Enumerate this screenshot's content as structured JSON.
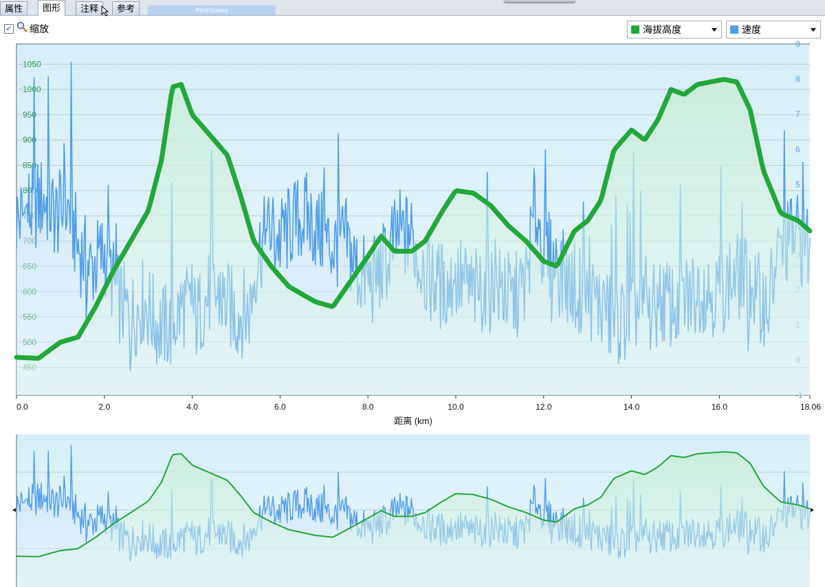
{
  "tabs": [
    {
      "label": "属性",
      "active": false
    },
    {
      "label": "图形",
      "active": true
    },
    {
      "label": "注释",
      "active": false
    },
    {
      "label": "参考",
      "active": false
    }
  ],
  "capture_label": "PrintScreen",
  "toolbar": {
    "zoom_checked": true,
    "zoom_label": "缩放",
    "series1_select": "海拔高度",
    "series2_select": "速度"
  },
  "colors": {
    "elevation": "#22a83a",
    "speed": "#4f9ee8",
    "axis_left": "#2f9a4a",
    "axis_right": "#5a9fd9"
  },
  "chart_data": {
    "type": "line",
    "xlabel": "距离 (km)",
    "xlim": [
      0,
      18.06
    ],
    "x_ticks": [
      "0.0",
      "2.0",
      "4.0",
      "6.0",
      "8.0",
      "10.0",
      "12.0",
      "14.0",
      "16.0",
      "18.06"
    ],
    "y_left_ticks": [
      450,
      500,
      550,
      600,
      650,
      700,
      750,
      800,
      850,
      900,
      950,
      1000,
      1050
    ],
    "y_left_range": [
      395,
      1090
    ],
    "y_right_ticks": [
      -1,
      0,
      1,
      2,
      3,
      4,
      5,
      6,
      7,
      8,
      9
    ],
    "y_right_range": [
      -1,
      9
    ],
    "series": [
      {
        "name": "海拔高度",
        "axis": "left",
        "x": [
          0,
          0.5,
          1.0,
          1.4,
          1.8,
          2.2,
          2.6,
          3.0,
          3.3,
          3.55,
          3.75,
          4.0,
          4.4,
          4.8,
          5.1,
          5.4,
          5.8,
          6.2,
          6.8,
          7.2,
          7.6,
          8.0,
          8.3,
          8.6,
          9.0,
          9.3,
          9.7,
          10.0,
          10.4,
          10.8,
          11.2,
          11.6,
          12.0,
          12.3,
          12.7,
          13.0,
          13.3,
          13.6,
          14.0,
          14.3,
          14.6,
          14.9,
          15.2,
          15.5,
          15.8,
          16.1,
          16.4,
          16.7,
          17.0,
          17.4,
          17.8,
          18.06
        ],
        "y": [
          470,
          468,
          500,
          510,
          570,
          640,
          700,
          760,
          860,
          1005,
          1010,
          950,
          910,
          870,
          790,
          700,
          650,
          610,
          580,
          570,
          620,
          670,
          710,
          680,
          680,
          700,
          760,
          800,
          795,
          770,
          730,
          700,
          660,
          650,
          720,
          740,
          780,
          880,
          920,
          900,
          940,
          1000,
          990,
          1010,
          1015,
          1020,
          1015,
          960,
          840,
          755,
          740,
          720
        ]
      },
      {
        "name": "速度",
        "axis": "right",
        "x": [
          0,
          0.3,
          0.6,
          0.9,
          1.2,
          1.4,
          1.7,
          2.0,
          2.3,
          2.6,
          2.9,
          3.2,
          3.5,
          3.8,
          4.1,
          4.4,
          4.7,
          5.0,
          5.3,
          5.5,
          5.8,
          6.0,
          6.3,
          6.6,
          6.9,
          7.2,
          7.5,
          7.8,
          8.1,
          8.4,
          8.7,
          9.0,
          9.2,
          9.5,
          9.8,
          10.1,
          10.4,
          10.7,
          11.0,
          11.3,
          11.6,
          11.8,
          12.0,
          12.3,
          12.6,
          12.9,
          13.2,
          13.5,
          13.8,
          14.1,
          14.4,
          14.7,
          15.0,
          15.3,
          15.6,
          15.9,
          16.2,
          16.5,
          16.8,
          17.1,
          17.4,
          17.7,
          18.06
        ],
        "y": [
          4.0,
          4.2,
          4.6,
          4.1,
          4.3,
          3.2,
          2.6,
          3.1,
          1.8,
          1.2,
          1.7,
          1.0,
          0.9,
          1.6,
          1.2,
          1.9,
          1.7,
          1.3,
          1.4,
          3.1,
          3.7,
          3.4,
          3.9,
          4.1,
          3.6,
          3.2,
          3.4,
          2.4,
          2.2,
          2.8,
          3.6,
          3.5,
          2.6,
          2.2,
          2.1,
          2.3,
          1.9,
          2.1,
          2.0,
          1.7,
          2.2,
          4.4,
          3.2,
          2.6,
          2.2,
          1.9,
          1.7,
          1.2,
          1.1,
          1.5,
          1.3,
          1.7,
          1.5,
          1.8,
          2.1,
          1.9,
          2.2,
          2.4,
          1.9,
          1.6,
          3.2,
          3.6,
          3.1
        ]
      }
    ],
    "overview": true
  }
}
